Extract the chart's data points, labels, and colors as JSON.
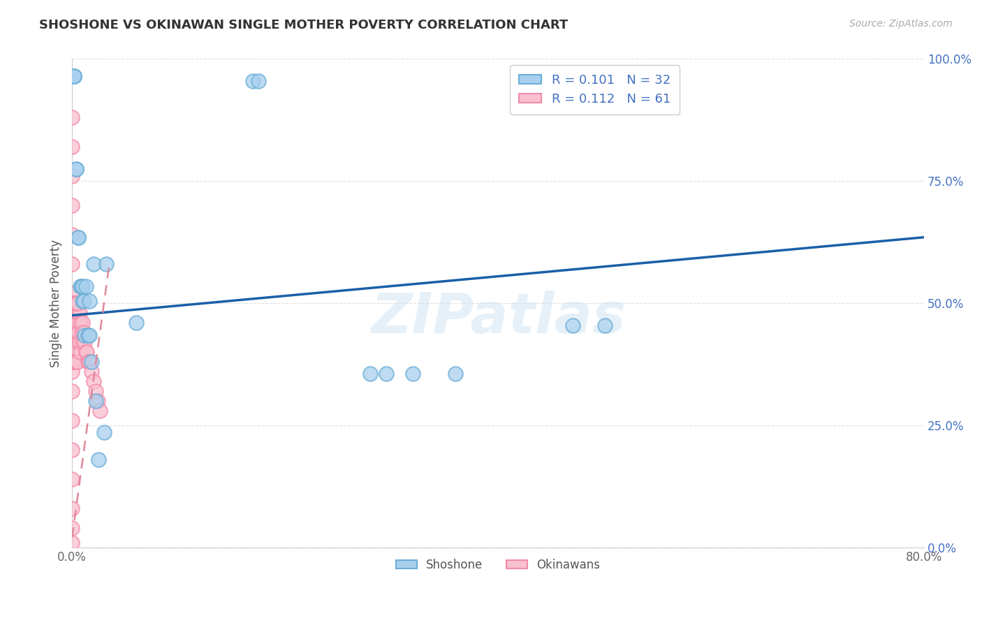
{
  "title": "SHOSHONE VS OKINAWAN SINGLE MOTHER POVERTY CORRELATION CHART",
  "source": "Source: ZipAtlas.com",
  "ylabel": "Single Mother Poverty",
  "ytick_labels": [
    "0.0%",
    "25.0%",
    "50.0%",
    "75.0%",
    "100.0%"
  ],
  "ytick_values": [
    0.0,
    0.25,
    0.5,
    0.75,
    1.0
  ],
  "legend_shoshone_R": "0.101",
  "legend_shoshone_N": "32",
  "legend_okinawan_R": "0.112",
  "legend_okinawan_N": "61",
  "shoshone_color_face": "#a8d0ee",
  "shoshone_color_edge": "#6baed6",
  "okinawan_color_face": "#f9c0cf",
  "okinawan_color_edge": "#f48aaa",
  "shoshone_trend_color": "#1a5fa8",
  "okinawan_trend_color": "#e08898",
  "watermark": "ZIPatlas",
  "shoshone_x": [
    0.002,
    0.002,
    0.002,
    0.004,
    0.004,
    0.006,
    0.006,
    0.008,
    0.009,
    0.01,
    0.01,
    0.011,
    0.012,
    0.013,
    0.015,
    0.016,
    0.016,
    0.018,
    0.02,
    0.022,
    0.025,
    0.03,
    0.032,
    0.06,
    0.17,
    0.175,
    0.32,
    0.36,
    0.5,
    0.28,
    0.295,
    0.47
  ],
  "shoshone_y": [
    0.965,
    0.965,
    0.965,
    0.775,
    0.775,
    0.635,
    0.635,
    0.535,
    0.535,
    0.535,
    0.505,
    0.505,
    0.435,
    0.535,
    0.435,
    0.435,
    0.505,
    0.38,
    0.58,
    0.3,
    0.18,
    0.235,
    0.58,
    0.46,
    0.955,
    0.955,
    0.355,
    0.355,
    0.455,
    0.355,
    0.355,
    0.455
  ],
  "okinawan_x": [
    0.0,
    0.0,
    0.0,
    0.0,
    0.0,
    0.0,
    0.0,
    0.0,
    0.0,
    0.0,
    0.0,
    0.0,
    0.0,
    0.0,
    0.0,
    0.0,
    0.0,
    0.0,
    0.0,
    0.0,
    0.0,
    0.0,
    0.0,
    0.0,
    0.0,
    0.0,
    0.0,
    0.002,
    0.002,
    0.003,
    0.003,
    0.003,
    0.004,
    0.004,
    0.005,
    0.005,
    0.005,
    0.005,
    0.006,
    0.006,
    0.007,
    0.007,
    0.008,
    0.008,
    0.009,
    0.01,
    0.01,
    0.011,
    0.012,
    0.013,
    0.014,
    0.015,
    0.016,
    0.018,
    0.02,
    0.022,
    0.024,
    0.026,
    0.003,
    0.004,
    0.005
  ],
  "okinawan_y": [
    0.88,
    0.82,
    0.76,
    0.7,
    0.64,
    0.58,
    0.52,
    0.46,
    0.4,
    0.36,
    0.5,
    0.5,
    0.5,
    0.5,
    0.44,
    0.44,
    0.44,
    0.44,
    0.38,
    0.38,
    0.32,
    0.26,
    0.2,
    0.14,
    0.08,
    0.04,
    0.01,
    0.5,
    0.44,
    0.5,
    0.44,
    0.38,
    0.5,
    0.44,
    0.5,
    0.46,
    0.42,
    0.38,
    0.48,
    0.44,
    0.48,
    0.42,
    0.46,
    0.4,
    0.44,
    0.46,
    0.42,
    0.44,
    0.42,
    0.4,
    0.4,
    0.38,
    0.38,
    0.36,
    0.34,
    0.32,
    0.3,
    0.28,
    0.5,
    0.5,
    0.5
  ],
  "shoshone_trend_x": [
    0.0,
    0.8
  ],
  "shoshone_trend_y": [
    0.475,
    0.635
  ],
  "okinawan_trend_x": [
    0.0,
    0.035
  ],
  "okinawan_trend_y": [
    0.02,
    0.58
  ],
  "xlim": [
    0.0,
    0.8
  ],
  "ylim": [
    0.0,
    1.0
  ],
  "background_color": "#ffffff",
  "grid_color": "#dddddd"
}
